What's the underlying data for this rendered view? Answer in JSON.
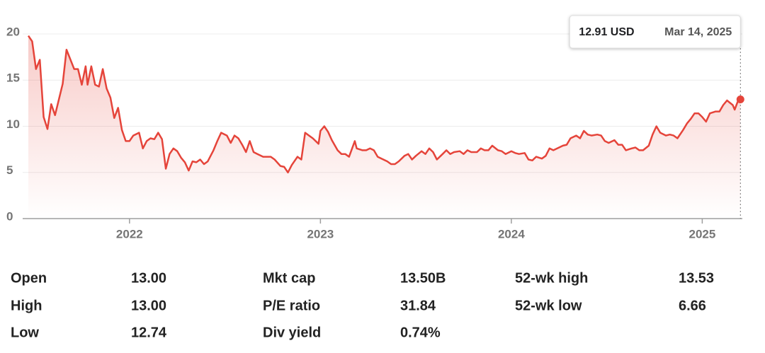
{
  "chart_data": {
    "type": "line",
    "color": "#e5443a",
    "x": [
      2021.47,
      2021.49,
      2021.51,
      2021.53,
      2021.55,
      2021.57,
      2021.59,
      2021.61,
      2021.65,
      2021.67,
      2021.71,
      2021.73,
      2021.75,
      2021.77,
      2021.78,
      2021.8,
      2021.82,
      2021.84,
      2021.86,
      2021.88,
      2021.9,
      2021.92,
      2021.94,
      2021.96,
      2021.98,
      2022.0,
      2022.02,
      2022.05,
      2022.07,
      2022.09,
      2022.11,
      2022.13,
      2022.15,
      2022.17,
      2022.19,
      2022.21,
      2022.23,
      2022.25,
      2022.27,
      2022.29,
      2022.31,
      2022.33,
      2022.35,
      2022.37,
      2022.39,
      2022.41,
      2022.44,
      2022.46,
      2022.48,
      2022.51,
      2022.53,
      2022.55,
      2022.57,
      2022.59,
      2022.61,
      2022.63,
      2022.65,
      2022.67,
      2022.7,
      2022.72,
      2022.74,
      2022.76,
      2022.79,
      2022.81,
      2022.83,
      2022.85,
      2022.88,
      2022.9,
      2022.92,
      2022.94,
      2022.96,
      2022.99,
      2023.0,
      2023.02,
      2023.04,
      2023.06,
      2023.09,
      2023.11,
      2023.13,
      2023.15,
      2023.18,
      2023.19,
      2023.22,
      2023.24,
      2023.26,
      2023.28,
      2023.3,
      2023.32,
      2023.35,
      2023.37,
      2023.39,
      2023.41,
      2023.44,
      2023.46,
      2023.48,
      2023.5,
      2023.53,
      2023.55,
      2023.57,
      2023.59,
      2023.61,
      2023.64,
      2023.66,
      2023.68,
      2023.7,
      2023.73,
      2023.75,
      2023.77,
      2023.79,
      2023.82,
      2023.84,
      2023.86,
      2023.88,
      2023.9,
      2023.93,
      2023.95,
      2023.97,
      2024.0,
      2024.02,
      2024.04,
      2024.07,
      2024.09,
      2024.11,
      2024.13,
      2024.16,
      2024.18,
      2024.2,
      2024.22,
      2024.25,
      2024.27,
      2024.29,
      2024.31,
      2024.34,
      2024.36,
      2024.38,
      2024.4,
      2024.42,
      2024.45,
      2024.47,
      2024.49,
      2024.51,
      2024.54,
      2024.56,
      2024.58,
      2024.6,
      2024.63,
      2024.65,
      2024.67,
      2024.69,
      2024.72,
      2024.74,
      2024.76,
      2024.78,
      2024.81,
      2024.83,
      2024.85,
      2024.87,
      2024.9,
      2024.92,
      2024.94,
      2024.96,
      2024.98,
      2025.0,
      2025.02,
      2025.04,
      2025.07,
      2025.09,
      2025.11,
      2025.13,
      2025.16,
      2025.17,
      2025.19,
      2025.2
    ],
    "values": [
      19.8,
      19.2,
      16.2,
      17.2,
      11,
      9.7,
      12.4,
      11.2,
      14.6,
      18.3,
      16.2,
      16.2,
      14.5,
      16.5,
      14.5,
      16.5,
      14.5,
      14.3,
      16.2,
      14.1,
      13.1,
      10.9,
      12,
      9.6,
      8.4,
      8.4,
      9,
      9.3,
      7.6,
      8.4,
      8.7,
      8.6,
      9.3,
      8.6,
      5.4,
      7,
      7.6,
      7.3,
      6.6,
      6.1,
      5.2,
      6.2,
      6.1,
      6.4,
      5.9,
      6.2,
      7.4,
      8.4,
      9.3,
      9,
      8.2,
      9,
      8.7,
      8,
      7.2,
      8.4,
      7.2,
      7,
      6.7,
      6.7,
      6.7,
      6.4,
      5.7,
      5.6,
      5,
      5.8,
      6.7,
      6.4,
      9.3,
      9,
      8.7,
      8.1,
      9.5,
      10,
      9.4,
      8.5,
      7.4,
      7,
      7,
      6.7,
      8.4,
      7.6,
      7.4,
      7.4,
      7.6,
      7.4,
      6.7,
      6.5,
      6.2,
      5.9,
      5.9,
      6.2,
      6.8,
      7,
      6.4,
      6.8,
      7.3,
      7,
      7.6,
      7.2,
      6.4,
      7,
      7.4,
      7,
      7.2,
      7.3,
      7,
      7.4,
      7.2,
      7.2,
      7.6,
      7.4,
      7.4,
      7.9,
      7.4,
      7.3,
      7,
      7.3,
      7.1,
      7,
      7.1,
      6.4,
      6.3,
      6.7,
      6.5,
      6.8,
      7.6,
      7.4,
      7.7,
      7.9,
      8,
      8.7,
      9,
      8.7,
      9.5,
      9.1,
      9,
      9.1,
      9,
      8.4,
      8.2,
      8.5,
      8,
      8,
      7.4,
      7.6,
      7.7,
      7.4,
      7.4,
      7.9,
      9.1,
      10,
      9.3,
      9,
      9.1,
      9,
      8.7,
      9.6,
      10.3,
      10.8,
      11.4,
      11.4,
      11,
      10.5,
      11.4,
      11.6,
      11.6,
      12.3,
      12.8,
      12.3,
      11.8,
      12.9,
      12.91
    ],
    "xlim": [
      2021.47,
      2025.21
    ],
    "xticks": [
      2022,
      2023,
      2024,
      2025
    ],
    "ylim": [
      0,
      20
    ],
    "yticks": [
      0,
      5,
      10,
      15,
      20
    ],
    "grid": true,
    "tooltip": {
      "value": 12.91,
      "label": "12.91 USD",
      "date": "Mar 14, 2025"
    }
  },
  "stats": {
    "rows": [
      [
        {
          "label": "Open",
          "value": "13.00"
        },
        {
          "label": "Mkt cap",
          "value": "13.50B"
        },
        {
          "label": "52-wk high",
          "value": "13.53"
        }
      ],
      [
        {
          "label": "High",
          "value": "13.00"
        },
        {
          "label": "P/E ratio",
          "value": "31.84"
        },
        {
          "label": "52-wk low",
          "value": "6.66"
        }
      ],
      [
        {
          "label": "Low",
          "value": "12.74"
        },
        {
          "label": "Div yield",
          "value": "0.74%"
        }
      ]
    ]
  }
}
